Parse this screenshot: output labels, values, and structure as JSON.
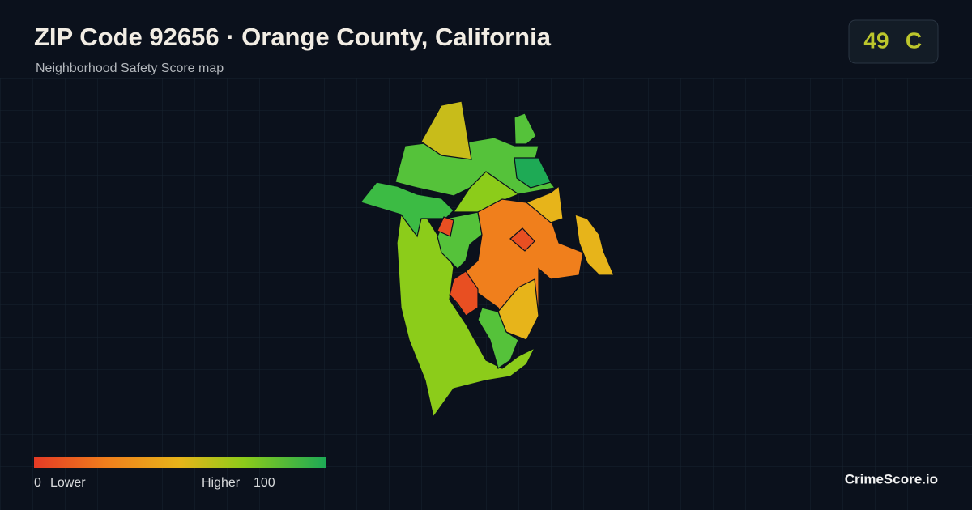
{
  "header": {
    "title": "ZIP Code 92656 · Orange County, California",
    "subtitle": "Neighborhood Safety Score map"
  },
  "score": {
    "value": 49,
    "grade": "C"
  },
  "legend": {
    "min": 0,
    "min_label": "Lower",
    "max_label": "Higher",
    "max": 100
  },
  "brand": "CrimeScore.io"
}
